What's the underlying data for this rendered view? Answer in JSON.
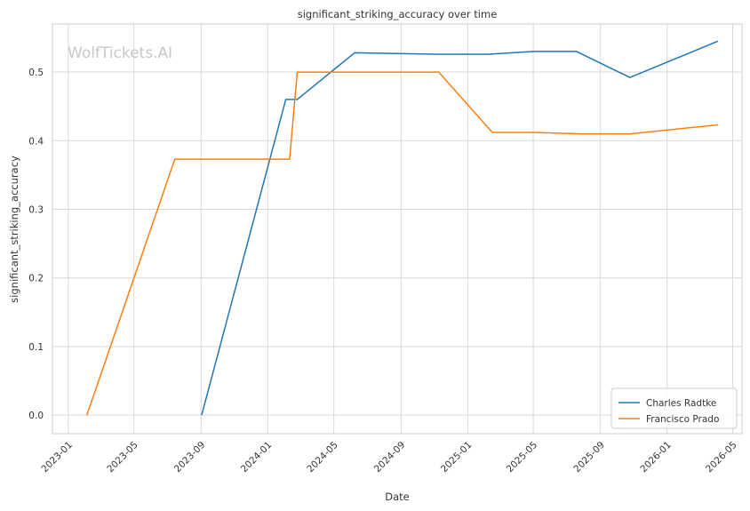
{
  "chart_data": {
    "type": "line",
    "title": "significant_striking_accuracy over time",
    "xlabel": "Date",
    "ylabel": "significant_striking_accuracy",
    "watermark": "WolfTickets.AI",
    "grid": true,
    "legend_position": "lower-right",
    "x_axis": {
      "type": "date",
      "range": [
        "2022-12-03",
        "2026-05-18"
      ],
      "ticks": [
        "2023-01-01",
        "2023-05-01",
        "2023-09-01",
        "2024-01-01",
        "2024-05-01",
        "2024-09-01",
        "2025-01-01",
        "2025-05-01",
        "2025-09-01",
        "2026-01-01",
        "2026-05-01"
      ],
      "tick_labels": [
        "2023-01",
        "2023-05",
        "2023-09",
        "2024-01",
        "2024-05",
        "2024-09",
        "2025-01",
        "2025-05",
        "2025-09",
        "2026-01",
        "2026-05"
      ]
    },
    "y_axis": {
      "range": [
        -0.027,
        0.57
      ],
      "ticks": [
        0.0,
        0.1,
        0.2,
        0.3,
        0.4,
        0.5
      ],
      "tick_labels": [
        "0.0",
        "0.1",
        "0.2",
        "0.3",
        "0.4",
        "0.5"
      ]
    },
    "series": [
      {
        "name": "Charles Radtke",
        "color": "#1f77b4",
        "points": [
          {
            "x": "2023-09-02",
            "y": 0.0
          },
          {
            "x": "2024-02-03",
            "y": 0.46
          },
          {
            "x": "2024-02-24",
            "y": 0.46
          },
          {
            "x": "2024-06-08",
            "y": 0.528
          },
          {
            "x": "2024-11-02",
            "y": 0.526
          },
          {
            "x": "2025-02-08",
            "y": 0.526
          },
          {
            "x": "2025-05-03",
            "y": 0.53
          },
          {
            "x": "2025-07-19",
            "y": 0.53
          },
          {
            "x": "2025-10-25",
            "y": 0.492
          },
          {
            "x": "2026-04-04",
            "y": 0.545
          }
        ]
      },
      {
        "name": "Francisco Prado",
        "color": "#ff7f0e",
        "points": [
          {
            "x": "2023-02-04",
            "y": 0.0
          },
          {
            "x": "2023-07-15",
            "y": 0.373
          },
          {
            "x": "2024-02-10",
            "y": 0.373
          },
          {
            "x": "2024-02-24",
            "y": 0.5
          },
          {
            "x": "2024-11-09",
            "y": 0.5
          },
          {
            "x": "2025-02-15",
            "y": 0.412
          },
          {
            "x": "2025-05-03",
            "y": 0.412
          },
          {
            "x": "2025-07-26",
            "y": 0.41
          },
          {
            "x": "2025-10-25",
            "y": 0.41
          },
          {
            "x": "2026-04-04",
            "y": 0.423
          }
        ]
      }
    ]
  }
}
